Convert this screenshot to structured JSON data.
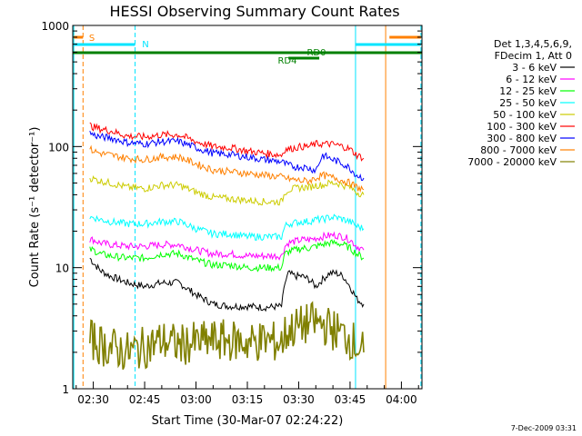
{
  "chart_data": {
    "type": "line",
    "title": "HESSI Observing Summary Count Rates",
    "xlabel": "Start Time (30-Mar-07 02:24:22)",
    "ylabel": "Count Rate (s⁻¹ detector⁻¹)",
    "yscale": "log",
    "ylim": [
      1,
      1000
    ],
    "xlim_minutes_after_0224": [
      0,
      102
    ],
    "x_ticks": [
      "02:30",
      "02:45",
      "03:00",
      "03:15",
      "03:30",
      "03:45",
      "04:00"
    ],
    "y_ticks": [
      "1",
      "10",
      "100",
      "1000"
    ],
    "footer": "7-Dec-2009 03:31",
    "legend_header": [
      "Det 1,3,4,5,6,9,",
      "FDecim 1, Att 0"
    ],
    "flags": [
      {
        "label": "S",
        "color": "#ff8000"
      },
      {
        "label": "N",
        "color": "#00e5ff"
      },
      {
        "label": "RD0",
        "color": "#008000"
      },
      {
        "label": "RD4",
        "color": "#008000"
      }
    ],
    "x_times": [
      "02:29",
      "02:30",
      "02:32",
      "02:35",
      "02:40",
      "02:45",
      "02:50",
      "02:55",
      "03:00",
      "03:05",
      "03:10",
      "03:15",
      "03:20",
      "03:25",
      "03:26",
      "03:27",
      "03:29",
      "03:31",
      "03:33",
      "03:35",
      "03:37",
      "03:39",
      "03:41",
      "03:43",
      "03:45",
      "03:47",
      "03:49"
    ],
    "series": [
      {
        "name": "3 - 6 keV",
        "color": "#000000",
        "values": [
          12,
          11,
          9.5,
          8.5,
          7.5,
          7,
          7.5,
          7.5,
          6,
          5,
          4.8,
          4.8,
          4.7,
          4.8,
          7.5,
          9,
          8.5,
          8.5,
          8,
          7,
          8,
          9,
          9,
          8.5,
          7,
          5.5,
          5
        ]
      },
      {
        "name": "6 - 12 keV",
        "color": "#ff00ff",
        "values": [
          17,
          17,
          16,
          15.5,
          15,
          15,
          15.5,
          15.5,
          14,
          13,
          13,
          12.5,
          12.5,
          12.5,
          15,
          16,
          16.5,
          17,
          17,
          17.5,
          18,
          18.5,
          18.5,
          18,
          17,
          15,
          14
        ]
      },
      {
        "name": "12 - 25 keV",
        "color": "#00ff00",
        "values": [
          14,
          14,
          13,
          12.5,
          12,
          12,
          13,
          13,
          11.5,
          10.5,
          10.5,
          10,
          10,
          10,
          13,
          13.5,
          14,
          14.5,
          14.5,
          15,
          15.5,
          16,
          16,
          15.5,
          14.5,
          13,
          12
        ]
      },
      {
        "name": "25 - 50 keV",
        "color": "#00ffff",
        "values": [
          26,
          26,
          25,
          24,
          23,
          23,
          24,
          24,
          21,
          19,
          19,
          18,
          18,
          18,
          22,
          23,
          23.5,
          24,
          24,
          25,
          25,
          26,
          26,
          25,
          24,
          22,
          21
        ]
      },
      {
        "name": "50 - 100 keV",
        "color": "#cccc00",
        "values": [
          55,
          54,
          52,
          50,
          46,
          45,
          48,
          48,
          42,
          38,
          37,
          36,
          35,
          35,
          42,
          44,
          45,
          46,
          46,
          48,
          48,
          50,
          50,
          48,
          46,
          42,
          40
        ]
      },
      {
        "name": "100 - 300 keV",
        "color": "#ff0000",
        "values": [
          150,
          145,
          140,
          135,
          122,
          120,
          125,
          125,
          110,
          100,
          98,
          92,
          88,
          85,
          95,
          95,
          98,
          100,
          100,
          105,
          105,
          105,
          103,
          100,
          95,
          85,
          80
        ]
      },
      {
        "name": "300 - 800 keV",
        "color": "#0000ff",
        "values": [
          130,
          125,
          120,
          118,
          108,
          105,
          110,
          110,
          98,
          88,
          86,
          82,
          78,
          75,
          72,
          70,
          68,
          68,
          66,
          64,
          85,
          80,
          76,
          72,
          66,
          58,
          55
        ]
      },
      {
        "name": "800 - 7000 keV",
        "color": "#ff8000",
        "values": [
          95,
          92,
          88,
          85,
          80,
          78,
          82,
          82,
          72,
          64,
          62,
          60,
          58,
          56,
          55,
          54,
          53,
          52,
          52,
          55,
          58,
          56,
          55,
          52,
          50,
          46,
          44
        ]
      },
      {
        "name": "7000 - 20000 keV",
        "color": "#808000",
        "values": [
          2.5,
          2.5,
          2.3,
          2.2,
          2,
          2.2,
          2.5,
          2.3,
          2.4,
          2.5,
          2.5,
          2.4,
          2.5,
          2.4,
          2.8,
          3,
          3.2,
          3.3,
          3.5,
          3.5,
          3.4,
          3.2,
          3,
          2.8,
          2.6,
          2.3,
          2
        ]
      }
    ]
  }
}
